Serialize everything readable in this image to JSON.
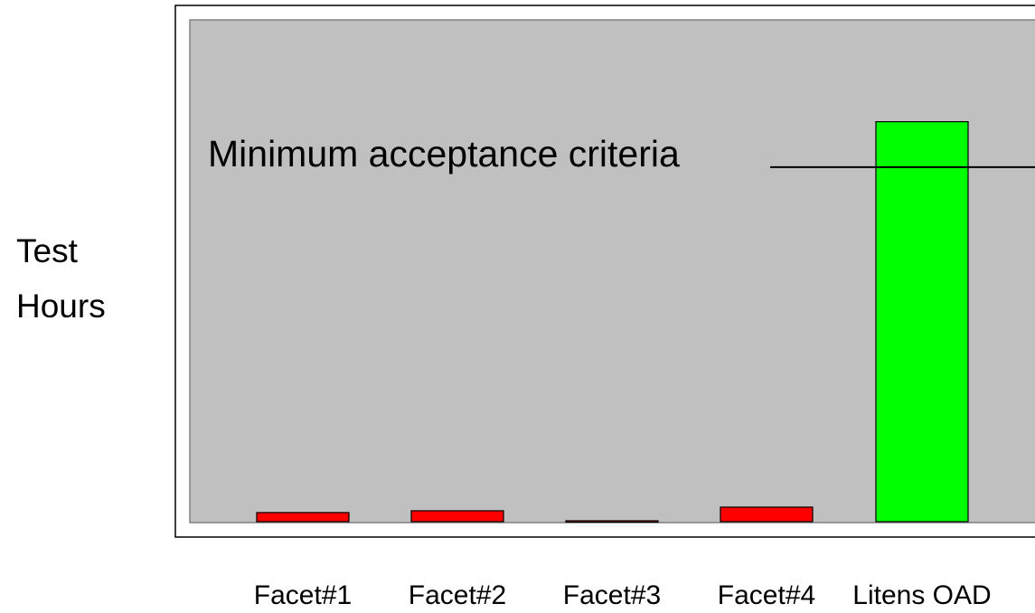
{
  "chart_data": {
    "type": "bar",
    "title": "",
    "xlabel": "",
    "ylabel_lines": [
      "Test",
      "Hours"
    ],
    "categories": [
      "Facet#1",
      "Facet#2",
      "Facet#3",
      "Facet#4",
      "Litens OAD"
    ],
    "values": [
      5,
      6,
      0.5,
      8,
      220
    ],
    "bar_colors": [
      "#ff0000",
      "#ff0000",
      "#ff0000",
      "#ff0000",
      "#00ff00"
    ],
    "ylim": [
      0,
      276
    ],
    "grid": false,
    "legend": "none",
    "plot_background": "#c0c0c0",
    "reference_line": {
      "label": "Minimum acceptance criteria",
      "value": 195
    }
  }
}
